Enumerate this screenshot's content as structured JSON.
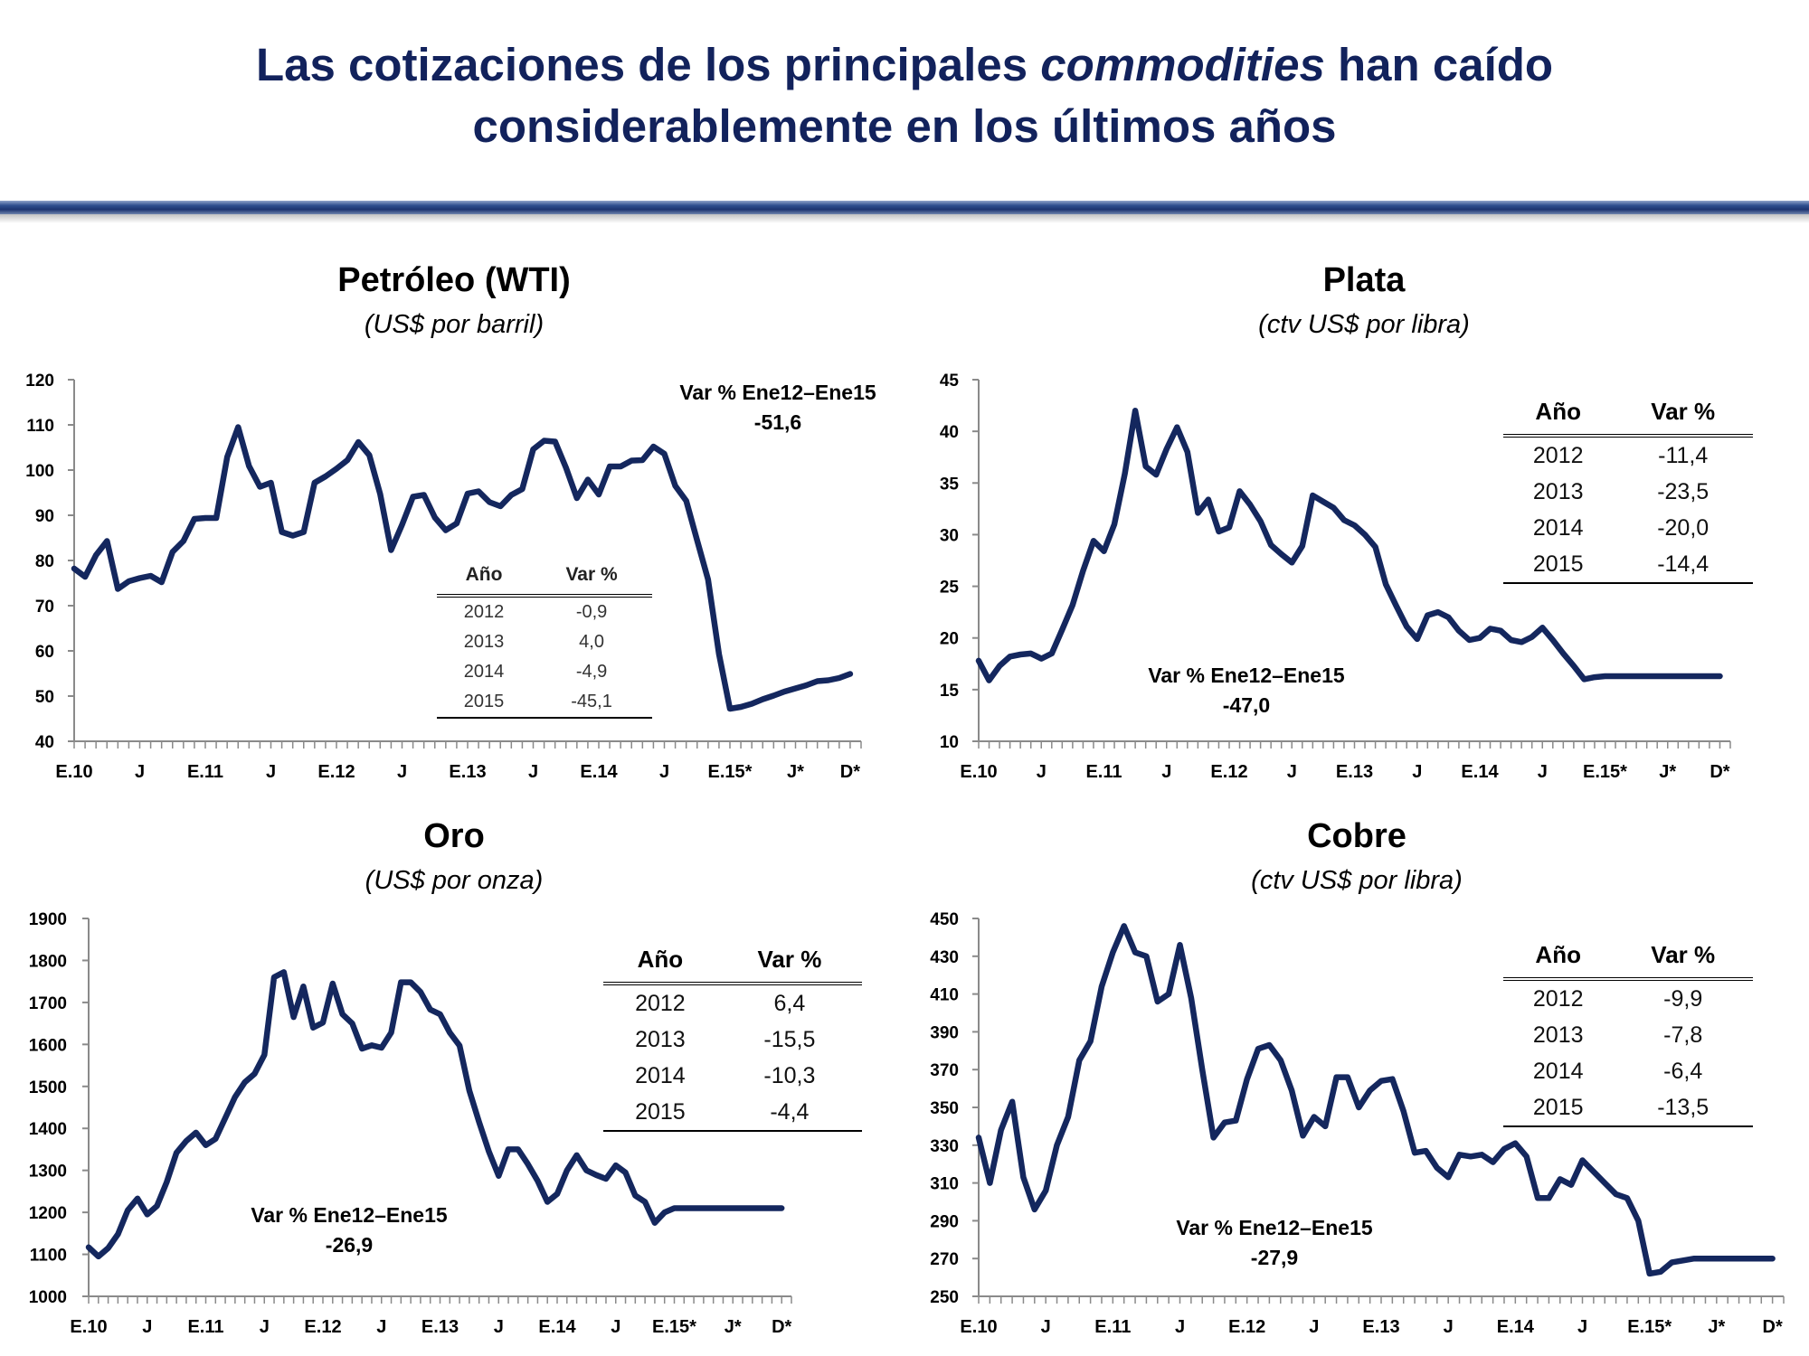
{
  "header": {
    "title_line1_a": "Las cotizaciones de los principales ",
    "title_line1_italic": "commodities",
    "title_line1_b": " han caído",
    "title_line2": "considerablemente en los últimos años"
  },
  "colors": {
    "title": "#12225c",
    "line": "#14275e",
    "rule": "#1d3470"
  },
  "tables": {
    "petroleo": {
      "col1": "Año",
      "col2": "Var %",
      "rows": [
        [
          "2012",
          "-0,9"
        ],
        [
          "2013",
          "4,0"
        ],
        [
          "2014",
          "-4,9"
        ],
        [
          "2015",
          "-45,1"
        ]
      ]
    },
    "plata": {
      "col1": "Año",
      "col2": "Var %",
      "rows": [
        [
          "2012",
          "-11,4"
        ],
        [
          "2013",
          "-23,5"
        ],
        [
          "2014",
          "-20,0"
        ],
        [
          "2015",
          "-14,4"
        ]
      ]
    },
    "oro": {
      "col1": "Año",
      "col2": "Var %",
      "rows": [
        [
          "2012",
          "6,4"
        ],
        [
          "2013",
          "-15,5"
        ],
        [
          "2014",
          "-10,3"
        ],
        [
          "2015",
          "-4,4"
        ]
      ]
    },
    "cobre": {
      "col1": "Año",
      "col2": "Var %",
      "rows": [
        [
          "2012",
          "-9,9"
        ],
        [
          "2013",
          "-7,8"
        ],
        [
          "2014",
          "-6,4"
        ],
        [
          "2015",
          "-13,5"
        ]
      ]
    }
  },
  "chart_data": [
    {
      "id": "petroleo",
      "type": "line",
      "title": "Petróleo (WTI)",
      "subtitle": "(US$ por barril)",
      "ylim": [
        40,
        120
      ],
      "yticks": [
        40,
        50,
        60,
        70,
        80,
        90,
        100,
        110,
        120
      ],
      "x_range": [
        0,
        72
      ],
      "xticks": [
        {
          "x": 0,
          "label": "E.10"
        },
        {
          "x": 6,
          "label": "J"
        },
        {
          "x": 12,
          "label": "E.11"
        },
        {
          "x": 18,
          "label": "J"
        },
        {
          "x": 24,
          "label": "E.12"
        },
        {
          "x": 30,
          "label": "J"
        },
        {
          "x": 36,
          "label": "E.13"
        },
        {
          "x": 42,
          "label": "J"
        },
        {
          "x": 48,
          "label": "E.14"
        },
        {
          "x": 54,
          "label": "J"
        },
        {
          "x": 60,
          "label": "E.15*"
        },
        {
          "x": 66,
          "label": "J*"
        },
        {
          "x": 71,
          "label": "D*"
        }
      ],
      "annotation_label": "Var % Ene12–Ene15",
      "annotation_value": "-51,6",
      "series": [
        {
          "x": [
            0,
            1,
            2,
            3,
            4,
            5,
            6,
            7,
            8,
            9,
            10,
            11,
            12,
            13,
            14,
            15,
            16,
            17,
            18,
            19,
            20,
            21,
            22,
            23,
            24,
            25,
            26,
            27,
            28,
            29,
            30,
            31,
            32,
            33,
            34,
            35,
            36,
            37,
            38,
            39,
            40,
            41,
            42,
            43,
            44,
            45,
            46,
            47,
            48,
            49,
            50,
            51,
            52,
            53,
            54,
            55,
            56,
            57,
            58,
            59,
            60,
            61,
            62,
            63,
            64,
            65,
            66,
            67,
            68,
            69,
            70,
            71
          ],
          "y": [
            78.2,
            76.4,
            81.2,
            84.3,
            73.7,
            75.4,
            76.1,
            76.6,
            75.2,
            81.9,
            84.3,
            89.2,
            89.4,
            89.4,
            102.9,
            109.5,
            100.9,
            96.3,
            97.2,
            86.3,
            85.5,
            86.3,
            97.2,
            98.6,
            100.3,
            102.2,
            106.2,
            103.3,
            94.7,
            82.3,
            87.9,
            94.1,
            94.5,
            89.5,
            86.7,
            88.2,
            94.8,
            95.3,
            92.9,
            92.0,
            94.5,
            95.8,
            104.6,
            106.5,
            106.3,
            100.5,
            93.8,
            97.9,
            94.6,
            100.8,
            100.8,
            102.1,
            102.2,
            105.2,
            103.6,
            96.5,
            93.2,
            84.4,
            75.8,
            59.3,
            47.2,
            47.6,
            48.3,
            49.3,
            50.1,
            51.0,
            51.7,
            52.4,
            53.3,
            53.5,
            54.0,
            54.9
          ]
        }
      ]
    },
    {
      "id": "plata",
      "type": "line",
      "title": "Plata",
      "subtitle": "(ctv US$ por libra)",
      "ylim": [
        10,
        45
      ],
      "yticks": [
        10,
        15,
        20,
        25,
        30,
        35,
        40,
        45
      ],
      "x_range": [
        0,
        72
      ],
      "xticks": [
        {
          "x": 0,
          "label": "E.10"
        },
        {
          "x": 6,
          "label": "J"
        },
        {
          "x": 12,
          "label": "E.11"
        },
        {
          "x": 18,
          "label": "J"
        },
        {
          "x": 24,
          "label": "E.12"
        },
        {
          "x": 30,
          "label": "J"
        },
        {
          "x": 36,
          "label": "E.13"
        },
        {
          "x": 42,
          "label": "J"
        },
        {
          "x": 48,
          "label": "E.14"
        },
        {
          "x": 54,
          "label": "J"
        },
        {
          "x": 60,
          "label": "E.15*"
        },
        {
          "x": 66,
          "label": "J*"
        },
        {
          "x": 71,
          "label": "D*"
        }
      ],
      "annotation_label": "Var % Ene12–Ene15",
      "annotation_value": "-47,0",
      "series": [
        {
          "x": [
            0,
            1,
            2,
            3,
            4,
            5,
            6,
            7,
            8,
            9,
            10,
            11,
            12,
            13,
            14,
            15,
            16,
            17,
            18,
            19,
            20,
            21,
            22,
            23,
            24,
            25,
            26,
            27,
            28,
            29,
            30,
            31,
            32,
            33,
            34,
            35,
            36,
            37,
            38,
            39,
            40,
            41,
            42,
            43,
            44,
            45,
            46,
            47,
            48,
            49,
            50,
            51,
            52,
            53,
            54,
            55,
            56,
            57,
            58,
            59,
            60,
            61,
            62,
            63,
            64,
            65,
            66,
            67,
            68,
            69,
            70,
            71
          ],
          "y": [
            17.8,
            15.9,
            17.3,
            18.2,
            18.4,
            18.5,
            18.0,
            18.5,
            20.8,
            23.2,
            26.5,
            29.4,
            28.4,
            31.0,
            35.9,
            42.0,
            36.6,
            35.8,
            38.3,
            40.4,
            38.0,
            32.1,
            33.4,
            30.3,
            30.7,
            34.2,
            32.9,
            31.3,
            29.0,
            28.1,
            27.3,
            28.9,
            33.8,
            33.2,
            32.6,
            31.4,
            30.9,
            30.0,
            28.8,
            25.2,
            23.1,
            21.1,
            19.9,
            22.2,
            22.5,
            22.0,
            20.7,
            19.8,
            20.0,
            20.9,
            20.7,
            19.8,
            19.6,
            20.1,
            21.0,
            19.8,
            18.5,
            17.3,
            16.0,
            16.2,
            16.3,
            16.3,
            16.3,
            16.3,
            16.3,
            16.3,
            16.3,
            16.3,
            16.3,
            16.3,
            16.3,
            16.3
          ]
        }
      ]
    },
    {
      "id": "oro",
      "type": "line",
      "title": "Oro",
      "subtitle": "(US$ por onza)",
      "ylim": [
        1000,
        1900
      ],
      "yticks": [
        1000,
        1100,
        1200,
        1300,
        1400,
        1500,
        1600,
        1700,
        1800,
        1900
      ],
      "x_range": [
        0,
        72
      ],
      "xticks": [
        {
          "x": 0,
          "label": "E.10"
        },
        {
          "x": 6,
          "label": "J"
        },
        {
          "x": 12,
          "label": "E.11"
        },
        {
          "x": 18,
          "label": "J"
        },
        {
          "x": 24,
          "label": "E.12"
        },
        {
          "x": 30,
          "label": "J"
        },
        {
          "x": 36,
          "label": "E.13"
        },
        {
          "x": 42,
          "label": "J"
        },
        {
          "x": 48,
          "label": "E.14"
        },
        {
          "x": 54,
          "label": "J"
        },
        {
          "x": 60,
          "label": "E.15*"
        },
        {
          "x": 66,
          "label": "J*"
        },
        {
          "x": 71,
          "label": "D*"
        }
      ],
      "annotation_label": "Var % Ene12–Ene15",
      "annotation_value": "-26,9",
      "series": [
        {
          "x": [
            0,
            1,
            2,
            3,
            4,
            5,
            6,
            7,
            8,
            9,
            10,
            11,
            12,
            13,
            14,
            15,
            16,
            17,
            18,
            19,
            20,
            21,
            22,
            23,
            24,
            25,
            26,
            27,
            28,
            29,
            30,
            31,
            32,
            33,
            34,
            35,
            36,
            37,
            38,
            39,
            40,
            41,
            42,
            43,
            44,
            45,
            46,
            47,
            48,
            49,
            50,
            51,
            52,
            53,
            54,
            55,
            56,
            57,
            58,
            59,
            60,
            61,
            62,
            63,
            64,
            65,
            66,
            67,
            68,
            69,
            70,
            71
          ],
          "y": [
            1117,
            1095,
            1115,
            1148,
            1205,
            1233,
            1195,
            1215,
            1272,
            1342,
            1370,
            1390,
            1360,
            1375,
            1425,
            1475,
            1510,
            1530,
            1575,
            1760,
            1772,
            1665,
            1738,
            1640,
            1652,
            1745,
            1672,
            1650,
            1590,
            1598,
            1592,
            1628,
            1748,
            1748,
            1725,
            1683,
            1672,
            1628,
            1597,
            1490,
            1415,
            1345,
            1287,
            1350,
            1350,
            1315,
            1275,
            1225,
            1244,
            1300,
            1336,
            1300,
            1289,
            1280,
            1312,
            1295,
            1240,
            1225,
            1175,
            1200,
            1210,
            1210,
            1210,
            1210,
            1210,
            1210,
            1210,
            1210,
            1210,
            1210,
            1210,
            1210
          ]
        }
      ]
    },
    {
      "id": "cobre",
      "type": "line",
      "title": "Cobre",
      "subtitle": "(ctv US$ por libra)",
      "ylim": [
        250,
        450
      ],
      "yticks": [
        250,
        270,
        290,
        310,
        330,
        350,
        370,
        390,
        410,
        430,
        450
      ],
      "x_range": [
        0,
        72
      ],
      "xticks": [
        {
          "x": 0,
          "label": "E.10"
        },
        {
          "x": 6,
          "label": "J"
        },
        {
          "x": 12,
          "label": "E.11"
        },
        {
          "x": 18,
          "label": "J"
        },
        {
          "x": 24,
          "label": "E.12"
        },
        {
          "x": 30,
          "label": "J"
        },
        {
          "x": 36,
          "label": "E.13"
        },
        {
          "x": 42,
          "label": "J"
        },
        {
          "x": 48,
          "label": "E.14"
        },
        {
          "x": 54,
          "label": "J"
        },
        {
          "x": 60,
          "label": "E.15*"
        },
        {
          "x": 66,
          "label": "J*"
        },
        {
          "x": 71,
          "label": "D*"
        }
      ],
      "annotation_label": "Var % Ene12–Ene15",
      "annotation_value": "-27,9",
      "series": [
        {
          "x": [
            0,
            1,
            2,
            3,
            4,
            5,
            6,
            7,
            8,
            9,
            10,
            11,
            12,
            13,
            14,
            15,
            16,
            17,
            18,
            19,
            20,
            21,
            22,
            23,
            24,
            25,
            26,
            27,
            28,
            29,
            30,
            31,
            32,
            33,
            34,
            35,
            36,
            37,
            38,
            39,
            40,
            41,
            42,
            43,
            44,
            45,
            46,
            47,
            48,
            49,
            50,
            51,
            52,
            53,
            54,
            55,
            56,
            57,
            58,
            59,
            60,
            61,
            62,
            63,
            64,
            65,
            66,
            67,
            68,
            69,
            70,
            71
          ],
          "y": [
            334,
            310,
            338,
            353,
            313,
            296,
            306,
            330,
            345,
            375,
            385,
            414,
            432,
            446,
            432,
            430,
            406,
            410,
            436,
            408,
            370,
            334,
            342,
            343,
            365,
            381,
            383,
            375,
            359,
            335,
            345,
            340,
            366,
            366,
            350,
            359,
            364,
            365,
            348,
            326,
            327,
            318,
            313,
            325,
            324,
            325,
            321,
            328,
            331,
            324,
            302,
            302,
            312,
            309,
            322,
            316,
            310,
            304,
            302,
            290,
            262,
            263,
            268,
            269,
            270,
            270,
            270,
            270,
            270,
            270,
            270,
            270
          ]
        }
      ]
    }
  ]
}
